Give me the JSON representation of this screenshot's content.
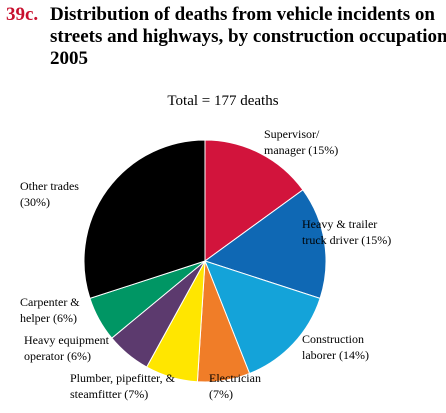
{
  "figure": {
    "number": "39c.",
    "title_lines": [
      "Distribution of deaths from vehicle incidents on",
      "streets and highways, by construction occupations,",
      "2005"
    ]
  },
  "chart_data": {
    "type": "pie",
    "subtitle": "Total = 177 deaths",
    "slices": [
      {
        "label_lines": [
          "Supervisor/",
          "manager (15%)"
        ],
        "value": 15,
        "color": "#d2143c"
      },
      {
        "label_lines": [
          "Heavy & trailer",
          "truck driver (15%)"
        ],
        "value": 15,
        "color": "#0f68b4"
      },
      {
        "label_lines": [
          "Construction",
          "laborer (14%)"
        ],
        "value": 14,
        "color": "#14a3d9"
      },
      {
        "label_lines": [
          "Electrician",
          "(7%)"
        ],
        "value": 7,
        "color": "#f07d28"
      },
      {
        "label_lines": [
          "Plumber, pipefitter, &",
          "steamfitter (7%)"
        ],
        "value": 7,
        "color": "#ffe600"
      },
      {
        "label_lines": [
          "Heavy equipment",
          "operator (6%)"
        ],
        "value": 6,
        "color": "#5c3a6e"
      },
      {
        "label_lines": [
          "Carpenter &",
          "helper (6%)"
        ],
        "value": 6,
        "color": "#009664"
      },
      {
        "label_lines": [
          "Other trades",
          "(30%)"
        ],
        "value": 30,
        "color": "#000000"
      }
    ]
  }
}
